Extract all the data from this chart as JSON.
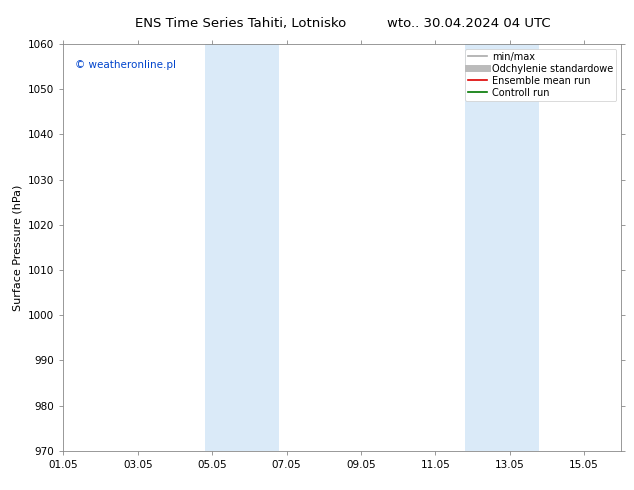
{
  "title_left": "ENS Time Series Tahiti, Lotnisko",
  "title_right": "wto.. 30.04.2024 04 UTC",
  "ylabel": "Surface Pressure (hPa)",
  "ylim": [
    970,
    1060
  ],
  "yticks": [
    970,
    980,
    990,
    1000,
    1010,
    1020,
    1030,
    1040,
    1050,
    1060
  ],
  "xlim": [
    0,
    15
  ],
  "xtick_labels": [
    "01.05",
    "03.05",
    "05.05",
    "07.05",
    "09.05",
    "11.05",
    "13.05",
    "15.05"
  ],
  "xtick_positions": [
    0,
    2,
    4,
    6,
    8,
    10,
    12,
    14
  ],
  "shaded_bands": [
    {
      "xmin": 3.8,
      "xmax": 5.8,
      "color": "#daeaf8"
    },
    {
      "xmin": 10.8,
      "xmax": 12.8,
      "color": "#daeaf8"
    }
  ],
  "legend_items": [
    {
      "label": "min/max",
      "color": "#aaaaaa",
      "lw": 1.2,
      "style": "-"
    },
    {
      "label": "Odchylenie standardowe",
      "color": "#bbbbbb",
      "lw": 5,
      "style": "-"
    },
    {
      "label": "Ensemble mean run",
      "color": "#dd0000",
      "lw": 1.2,
      "style": "-"
    },
    {
      "label": "Controll run",
      "color": "#007700",
      "lw": 1.2,
      "style": "-"
    }
  ],
  "watermark": "© weatheronline.pl",
  "watermark_color": "#0044cc",
  "bg_color": "#ffffff",
  "grid_color": "#cccccc",
  "title_fontsize": 9.5,
  "axis_label_fontsize": 8,
  "tick_fontsize": 7.5,
  "legend_fontsize": 7,
  "watermark_fontsize": 7.5
}
